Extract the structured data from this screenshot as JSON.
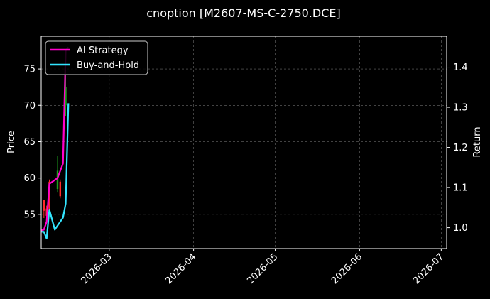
{
  "chart_data": {
    "type": "line",
    "title": "cnoption [M2607-MS-C-2750.DCE]",
    "left_axis": {
      "label": "Price",
      "ylim": [
        50.3,
        79.5
      ],
      "ticks": [
        55,
        60,
        65,
        70,
        75
      ]
    },
    "right_axis": {
      "label": "Return",
      "ylim": [
        0.948,
        1.477
      ],
      "ticks": [
        1.0,
        1.1,
        1.2,
        1.3,
        1.4
      ],
      "tick_labels": [
        "1.0",
        "1.1",
        "1.2",
        "1.3",
        "1.4"
      ]
    },
    "x_axis": {
      "xlim": [
        "2026-02-04",
        "2026-07-03"
      ],
      "ticks": [
        "2026-03-01",
        "2026-04-01",
        "2026-05-01",
        "2026-06-01",
        "2026-07-01"
      ],
      "tick_labels": [
        "2026-03",
        "2026-04",
        "2026-05",
        "2026-06",
        "2026-07"
      ]
    },
    "grid": true,
    "legend": {
      "position": "top-left"
    },
    "candles": [
      {
        "date": "2026-02-05",
        "open": 55.5,
        "close": 57.0,
        "low": 54.5,
        "high": 57.0,
        "color": "#ff2a2a"
      },
      {
        "date": "2026-02-06",
        "open": 54.8,
        "close": 55.8,
        "low": 54.3,
        "high": 56.2,
        "color": "#ff2a2a"
      },
      {
        "date": "2026-02-07",
        "open": 55.5,
        "close": 59.5,
        "low": 55.0,
        "high": 59.8,
        "color": "#ff2a2a"
      },
      {
        "date": "2026-02-10",
        "open": 58.5,
        "close": 61.0,
        "low": 58.0,
        "high": 63.0,
        "color": "#1e9e1e"
      },
      {
        "date": "2026-02-11",
        "open": 57.5,
        "close": 59.5,
        "low": 57.2,
        "high": 59.8,
        "color": "#ff2a2a"
      },
      {
        "date": "2026-02-13",
        "open": 70.0,
        "close": 72.5,
        "low": 68.5,
        "high": 77.5,
        "color": "#1e9e1e"
      }
    ],
    "series": [
      {
        "name": "AI Strategy",
        "color": "#ff00cc",
        "axis": "price",
        "x": [
          "2026-02-04",
          "2026-02-05",
          "2026-02-06",
          "2026-02-07",
          "2026-02-10",
          "2026-02-12",
          "2026-02-13",
          "2026-02-14"
        ],
        "values": [
          52.8,
          52.9,
          54.0,
          59.2,
          60.0,
          62.0,
          77.5,
          78.0
        ]
      },
      {
        "name": "Buy-and-Hold",
        "color": "#33e5ff",
        "axis": "return",
        "x": [
          "2026-02-04",
          "2026-02-05",
          "2026-02-06",
          "2026-02-07",
          "2026-02-09",
          "2026-02-10",
          "2026-02-12",
          "2026-02-13",
          "2026-02-14"
        ],
        "values": [
          0.99,
          0.99,
          0.973,
          1.045,
          0.995,
          1.005,
          1.025,
          1.06,
          1.31
        ]
      }
    ]
  }
}
